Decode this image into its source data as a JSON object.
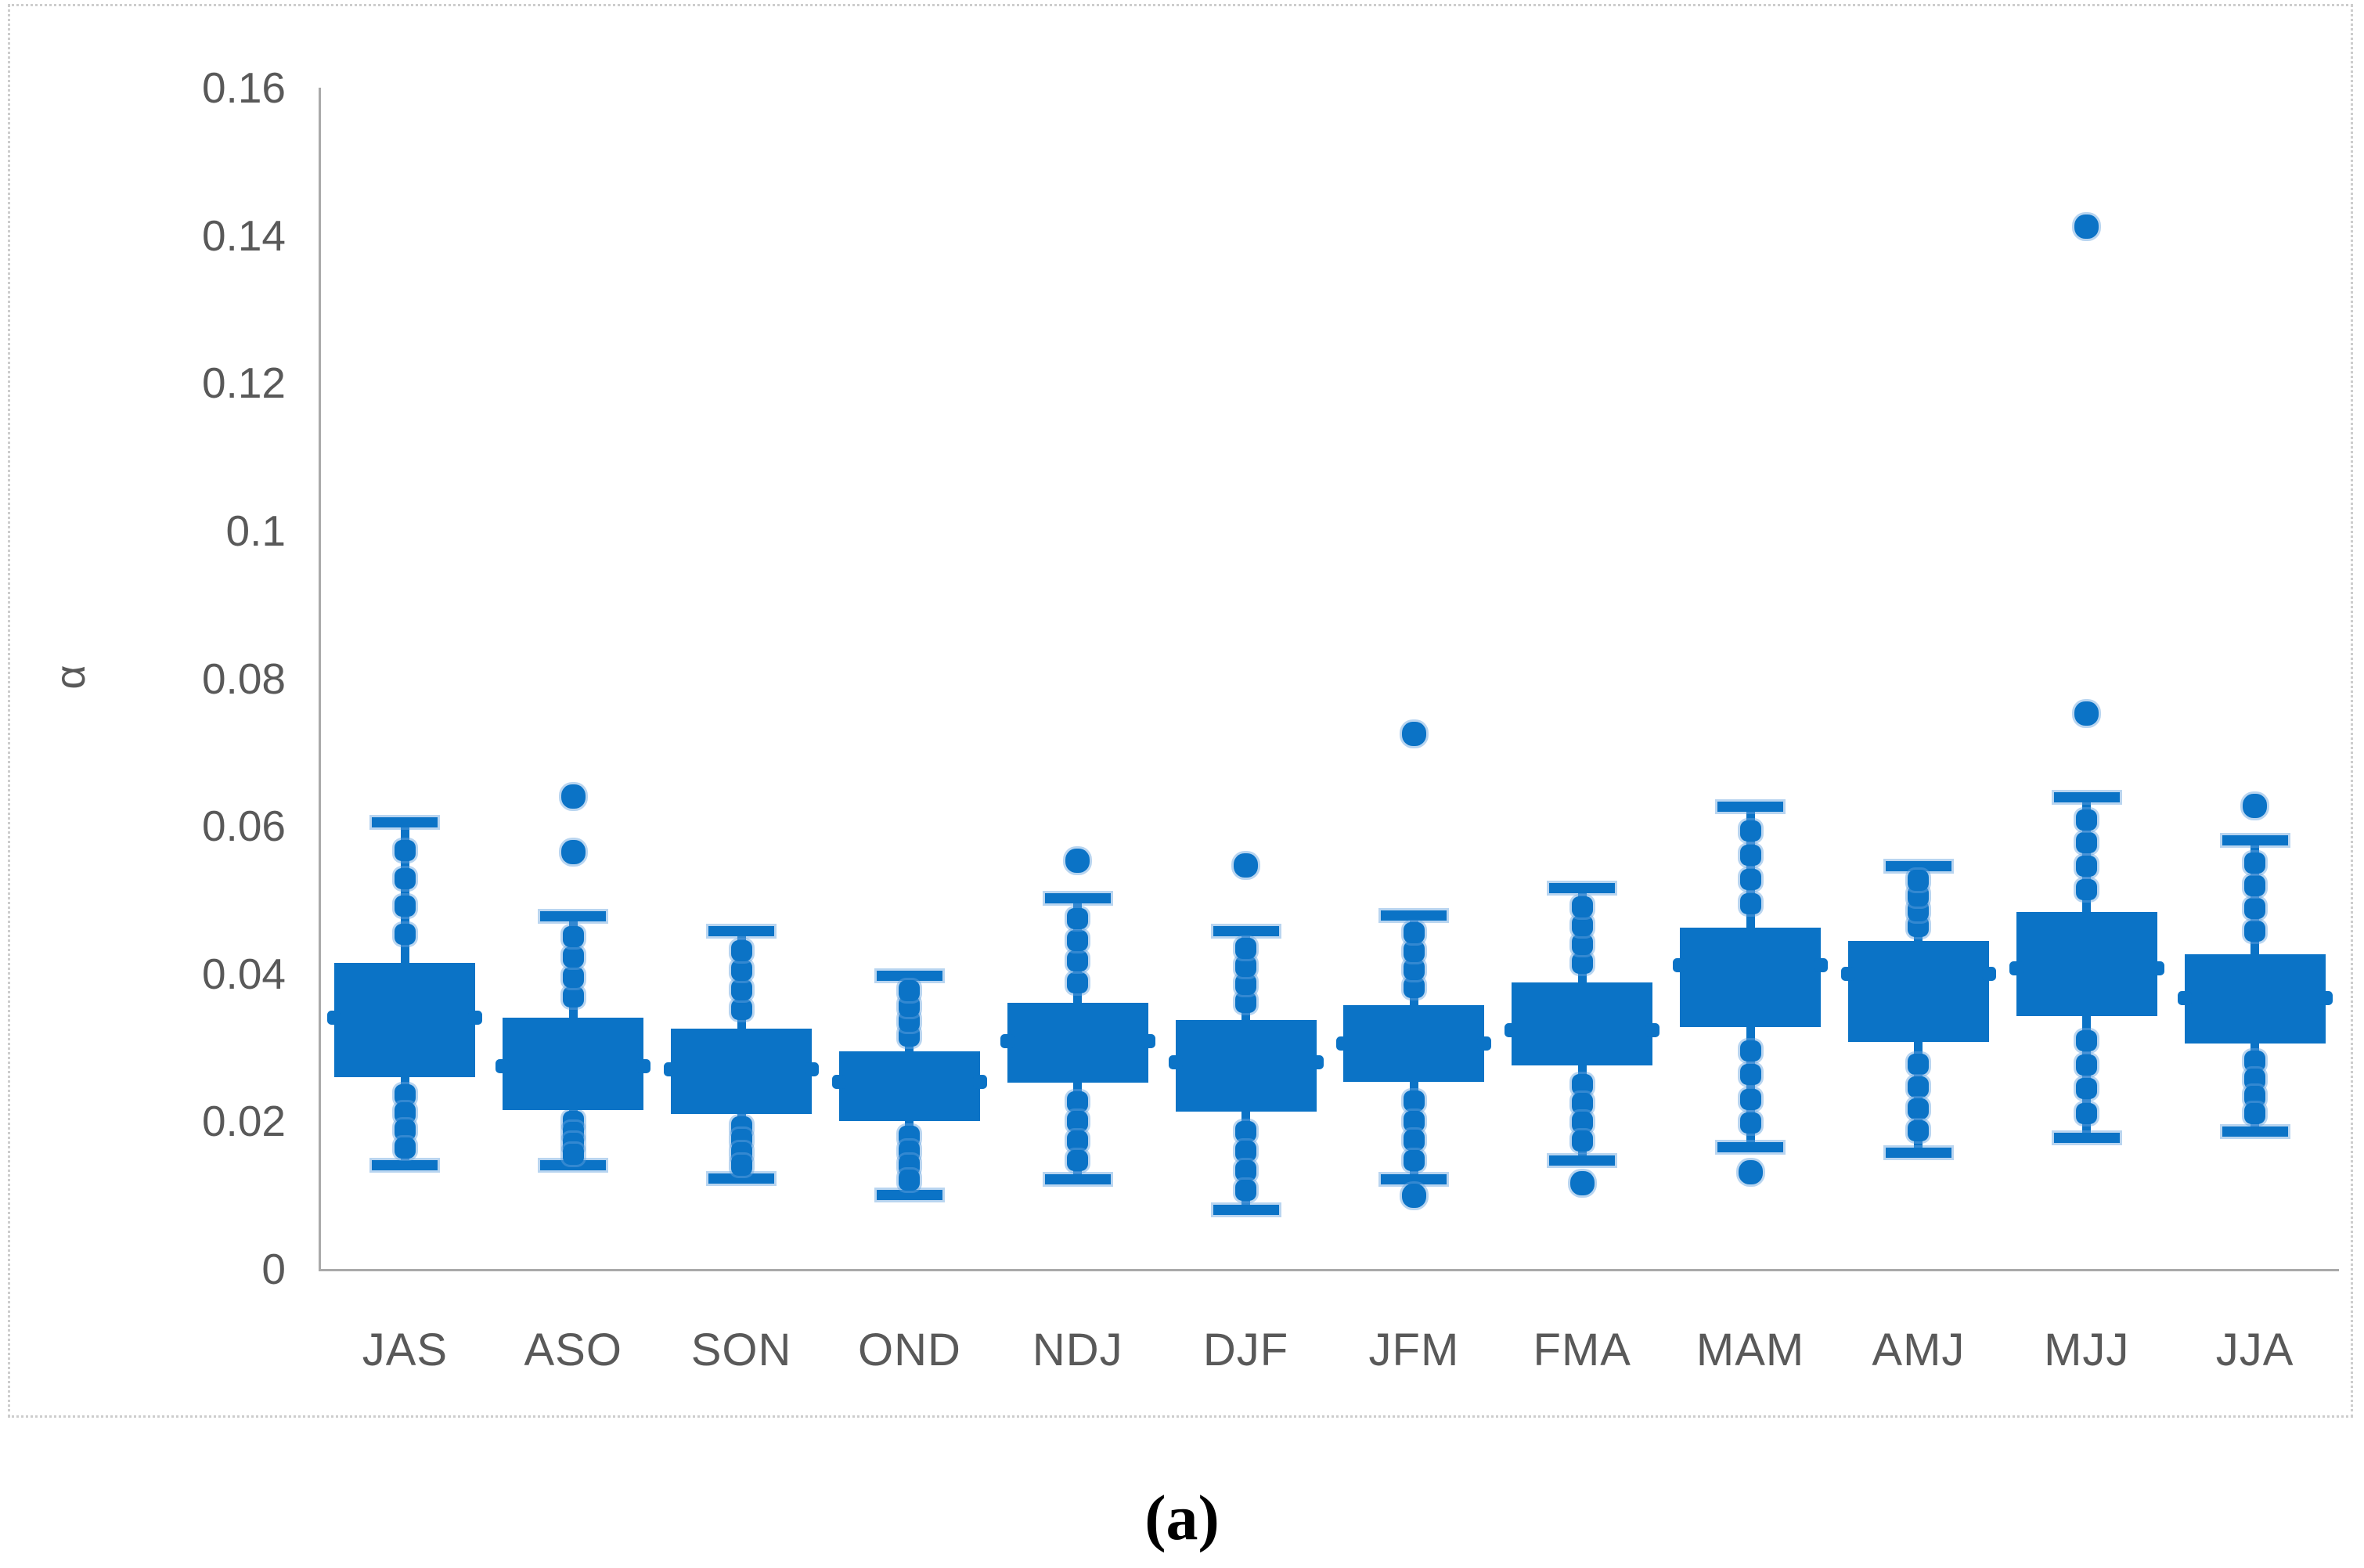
{
  "figure": {
    "caption": "(a)",
    "y_axis_title": "α",
    "accent_color": "#0b73c6",
    "halo_color": "rgba(99,161,222,0.45)",
    "axis_line_color": "#a9a9a9",
    "tick_text_color": "#595959",
    "border_color": "#cdcdcd"
  },
  "chart_data": {
    "type": "box",
    "title": "",
    "xlabel": "",
    "ylabel": "α",
    "ylim": [
      0,
      0.16
    ],
    "grid": false,
    "legend": false,
    "y_ticks": [
      "0",
      "0.02",
      "0.04",
      "0.06",
      "0.08",
      "0.1",
      "0.12",
      "0.14",
      "0.16"
    ],
    "y_tick_values": [
      0,
      0.02,
      0.04,
      0.06,
      0.08,
      0.1,
      0.12,
      0.14,
      0.16
    ],
    "categories": [
      "JAS",
      "ASO",
      "SON",
      "OND",
      "NDJ",
      "DJF",
      "JFM",
      "FMA",
      "MAM",
      "AMJ",
      "MJJ",
      "JJA"
    ],
    "boxes": [
      {
        "label": "JAS",
        "low": 0.014,
        "q1": 0.026,
        "median": 0.034,
        "q3": 0.0415,
        "high": 0.0605,
        "outliers": [],
        "points": [
          0.0453,
          0.0491,
          0.0529,
          0.0567,
          0.0236,
          0.0212,
          0.0188,
          0.0164
        ]
      },
      {
        "label": "ASO",
        "low": 0.014,
        "q1": 0.0215,
        "median": 0.0275,
        "q3": 0.034,
        "high": 0.0478,
        "outliers": [
          0.0565,
          0.064
        ],
        "points": [
          0.0368,
          0.0395,
          0.0423,
          0.045,
          0.02,
          0.0185,
          0.017,
          0.0155
        ]
      },
      {
        "label": "SON",
        "low": 0.0122,
        "q1": 0.021,
        "median": 0.027,
        "q3": 0.0325,
        "high": 0.0457,
        "outliers": [],
        "points": [
          0.0351,
          0.0378,
          0.0404,
          0.0431,
          0.0192,
          0.0175,
          0.0157,
          0.014
        ]
      },
      {
        "label": "OND",
        "low": 0.01,
        "q1": 0.02,
        "median": 0.0253,
        "q3": 0.0295,
        "high": 0.0397,
        "outliers": [],
        "points": [
          0.0315,
          0.0336,
          0.0356,
          0.0377,
          0.018,
          0.016,
          0.014,
          0.012
        ]
      },
      {
        "label": "NDJ",
        "low": 0.0121,
        "q1": 0.0252,
        "median": 0.0309,
        "q3": 0.036,
        "high": 0.0502,
        "outliers": [
          0.0553
        ],
        "points": [
          0.0388,
          0.0417,
          0.0445,
          0.0474,
          0.0226,
          0.02,
          0.0173,
          0.0147
        ]
      },
      {
        "label": "DJF",
        "low": 0.008,
        "q1": 0.0213,
        "median": 0.028,
        "q3": 0.0337,
        "high": 0.0458,
        "outliers": [
          0.0547
        ],
        "points": [
          0.0361,
          0.0385,
          0.041,
          0.0434,
          0.0186,
          0.016,
          0.0133,
          0.0107
        ]
      },
      {
        "label": "JFM",
        "low": 0.0121,
        "q1": 0.0253,
        "median": 0.0305,
        "q3": 0.0357,
        "high": 0.0479,
        "outliers": [
          0.0725,
          0.0099
        ],
        "points": [
          0.0381,
          0.0406,
          0.043,
          0.0455,
          0.0227,
          0.02,
          0.0174,
          0.0147
        ]
      },
      {
        "label": "FMA",
        "low": 0.0147,
        "q1": 0.0276,
        "median": 0.0323,
        "q3": 0.0388,
        "high": 0.0516,
        "outliers": [
          0.0116
        ],
        "points": [
          0.0414,
          0.0439,
          0.0465,
          0.049,
          0.025,
          0.0224,
          0.0199,
          0.0173
        ]
      },
      {
        "label": "MAM",
        "low": 0.0165,
        "q1": 0.0328,
        "median": 0.0411,
        "q3": 0.0462,
        "high": 0.0626,
        "outliers": [
          0.0131
        ],
        "points": [
          0.0495,
          0.0528,
          0.056,
          0.0593,
          0.0295,
          0.0263,
          0.023,
          0.0198
        ]
      },
      {
        "label": "AMJ",
        "low": 0.0157,
        "q1": 0.0307,
        "median": 0.04,
        "q3": 0.0444,
        "high": 0.0546,
        "outliers": [],
        "points": [
          0.0464,
          0.0485,
          0.0505,
          0.0526,
          0.0277,
          0.0247,
          0.0217,
          0.0187
        ]
      },
      {
        "label": "MJJ",
        "low": 0.0178,
        "q1": 0.0342,
        "median": 0.0407,
        "q3": 0.0483,
        "high": 0.0639,
        "outliers": [
          0.0752,
          0.1412
        ],
        "points": [
          0.0514,
          0.0545,
          0.0577,
          0.0608,
          0.0309,
          0.0276,
          0.0244,
          0.0211
        ]
      },
      {
        "label": "JJA",
        "low": 0.0186,
        "q1": 0.0305,
        "median": 0.0367,
        "q3": 0.0426,
        "high": 0.0581,
        "outliers": [
          0.0627
        ],
        "points": [
          0.0457,
          0.0488,
          0.0519,
          0.055,
          0.0281,
          0.0257,
          0.0234,
          0.021
        ]
      }
    ]
  }
}
